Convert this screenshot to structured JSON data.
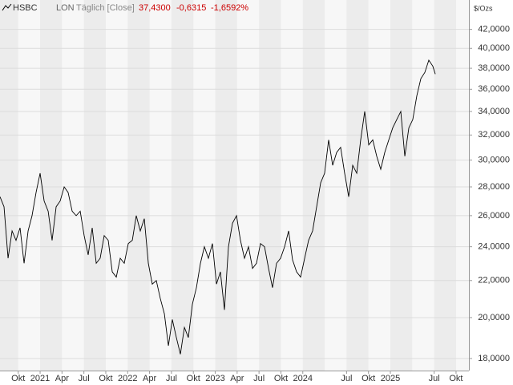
{
  "chart_data": {
    "type": "line",
    "title": "HSBC",
    "exchange": "LON",
    "interval": "Täglich [Close]",
    "last": "37,4300",
    "change": "-0,6315",
    "change_percent": "-1,6592%",
    "y_label": "$/Ozs",
    "log_scale": true,
    "grid": true,
    "xlim": [
      2020.542,
      2025.897
    ],
    "ylim": [
      17.45,
      45.3
    ],
    "xticks": [
      {
        "value": 2020.75,
        "label": "Okt"
      },
      2021,
      {
        "value": 2021.25,
        "label": "Apr"
      },
      {
        "value": 2021.5,
        "label": "Jul"
      },
      {
        "value": 2021.75,
        "label": "Okt"
      },
      2022,
      {
        "value": 2022.25,
        "label": "Apr"
      },
      {
        "value": 2022.5,
        "label": "Jul"
      },
      {
        "value": 2022.75,
        "label": "Okt"
      },
      2023,
      {
        "value": 2023.25,
        "label": "Apr"
      },
      {
        "value": 2023.5,
        "label": "Jul"
      },
      {
        "value": 2023.75,
        "label": "Okt"
      },
      2024,
      {
        "value": 2024.5,
        "label": "Jul"
      },
      {
        "value": 2024.75,
        "label": "Okt"
      },
      2025,
      {
        "value": 2025.5,
        "label": "Jul"
      },
      {
        "value": 2025.75,
        "label": "Okt"
      }
    ],
    "yticks": [
      {
        "value": 18,
        "label": "18,0000"
      },
      {
        "value": 20,
        "label": "20,0000"
      },
      {
        "value": 22,
        "label": "22,0000"
      },
      {
        "value": 24,
        "label": "24,0000"
      },
      {
        "value": 26,
        "label": "26,0000"
      },
      {
        "value": 28,
        "label": "28,0000"
      },
      {
        "value": 30,
        "label": "30,0000"
      },
      {
        "value": 32,
        "label": "32,0000"
      },
      {
        "value": 34,
        "label": "34,0000"
      },
      {
        "value": 36,
        "label": "36,0000"
      },
      {
        "value": 38,
        "label": "38,0000"
      },
      {
        "value": 40,
        "label": "40,0000"
      },
      {
        "value": 42,
        "label": "42,0000"
      }
    ],
    "series": [
      {
        "name": "HSBC",
        "color": "#000000",
        "x": [
          2020.542,
          2020.588,
          2020.634,
          2020.68,
          2020.725,
          2020.771,
          2020.817,
          2020.863,
          2020.908,
          2020.954,
          2021.0,
          2021.046,
          2021.092,
          2021.137,
          2021.183,
          2021.229,
          2021.275,
          2021.32,
          2021.366,
          2021.412,
          2021.458,
          2021.503,
          2021.549,
          2021.595,
          2021.641,
          2021.686,
          2021.732,
          2021.778,
          2021.824,
          2021.87,
          2021.915,
          2021.961,
          2022.007,
          2022.053,
          2022.098,
          2022.144,
          2022.19,
          2022.236,
          2022.281,
          2022.327,
          2022.373,
          2022.419,
          2022.465,
          2022.51,
          2022.556,
          2022.602,
          2022.648,
          2022.693,
          2022.739,
          2022.785,
          2022.831,
          2022.876,
          2022.922,
          2022.968,
          2023.014,
          2023.059,
          2023.105,
          2023.151,
          2023.197,
          2023.243,
          2023.288,
          2023.334,
          2023.38,
          2023.426,
          2023.471,
          2023.517,
          2023.563,
          2023.609,
          2023.654,
          2023.7,
          2023.746,
          2023.792,
          2023.838,
          2023.883,
          2023.929,
          2023.975,
          2024.021,
          2024.066,
          2024.112,
          2024.158,
          2024.204,
          2024.249,
          2024.295,
          2024.341,
          2024.387,
          2024.432,
          2024.478,
          2024.524,
          2024.57,
          2024.616,
          2024.661,
          2024.707,
          2024.753,
          2024.799,
          2024.844,
          2024.89,
          2024.936,
          2024.982,
          2025.027,
          2025.073,
          2025.119,
          2025.165,
          2025.211,
          2025.256,
          2025.302,
          2025.348,
          2025.394,
          2025.439,
          2025.485,
          2025.513
        ],
        "values": [
          27.3,
          26.6,
          23.3,
          25,
          24.4,
          25.2,
          23,
          25,
          26,
          27.6,
          29,
          27,
          26.3,
          24.4,
          26.6,
          27,
          28,
          27.6,
          26.3,
          26,
          26.3,
          24.7,
          23.5,
          25.2,
          23,
          23.3,
          24.7,
          24.4,
          22.5,
          22.2,
          23.3,
          23,
          24.2,
          24.4,
          26,
          25,
          25.8,
          23,
          21.8,
          22,
          21,
          20.2,
          18.6,
          19.9,
          19,
          18.2,
          19.5,
          19,
          20.7,
          21.6,
          23,
          24,
          23.3,
          24.2,
          21.8,
          22.5,
          20.4,
          24,
          25.5,
          26,
          24.4,
          23.3,
          24,
          22.7,
          23,
          24.2,
          24,
          22.7,
          21.6,
          23,
          23.3,
          24,
          25,
          23.2,
          22.5,
          22.2,
          23.3,
          24.4,
          25,
          26.6,
          28.3,
          29,
          31.6,
          29.6,
          30.6,
          31,
          29,
          27.3,
          29.6,
          29,
          31.6,
          34,
          31.2,
          31.6,
          30.3,
          29.3,
          30.6,
          31.6,
          32.6,
          33.3,
          34,
          30.3,
          32.6,
          33.3,
          35.4,
          37,
          37.6,
          38.8,
          38.2,
          37.43
        ]
      }
    ]
  }
}
